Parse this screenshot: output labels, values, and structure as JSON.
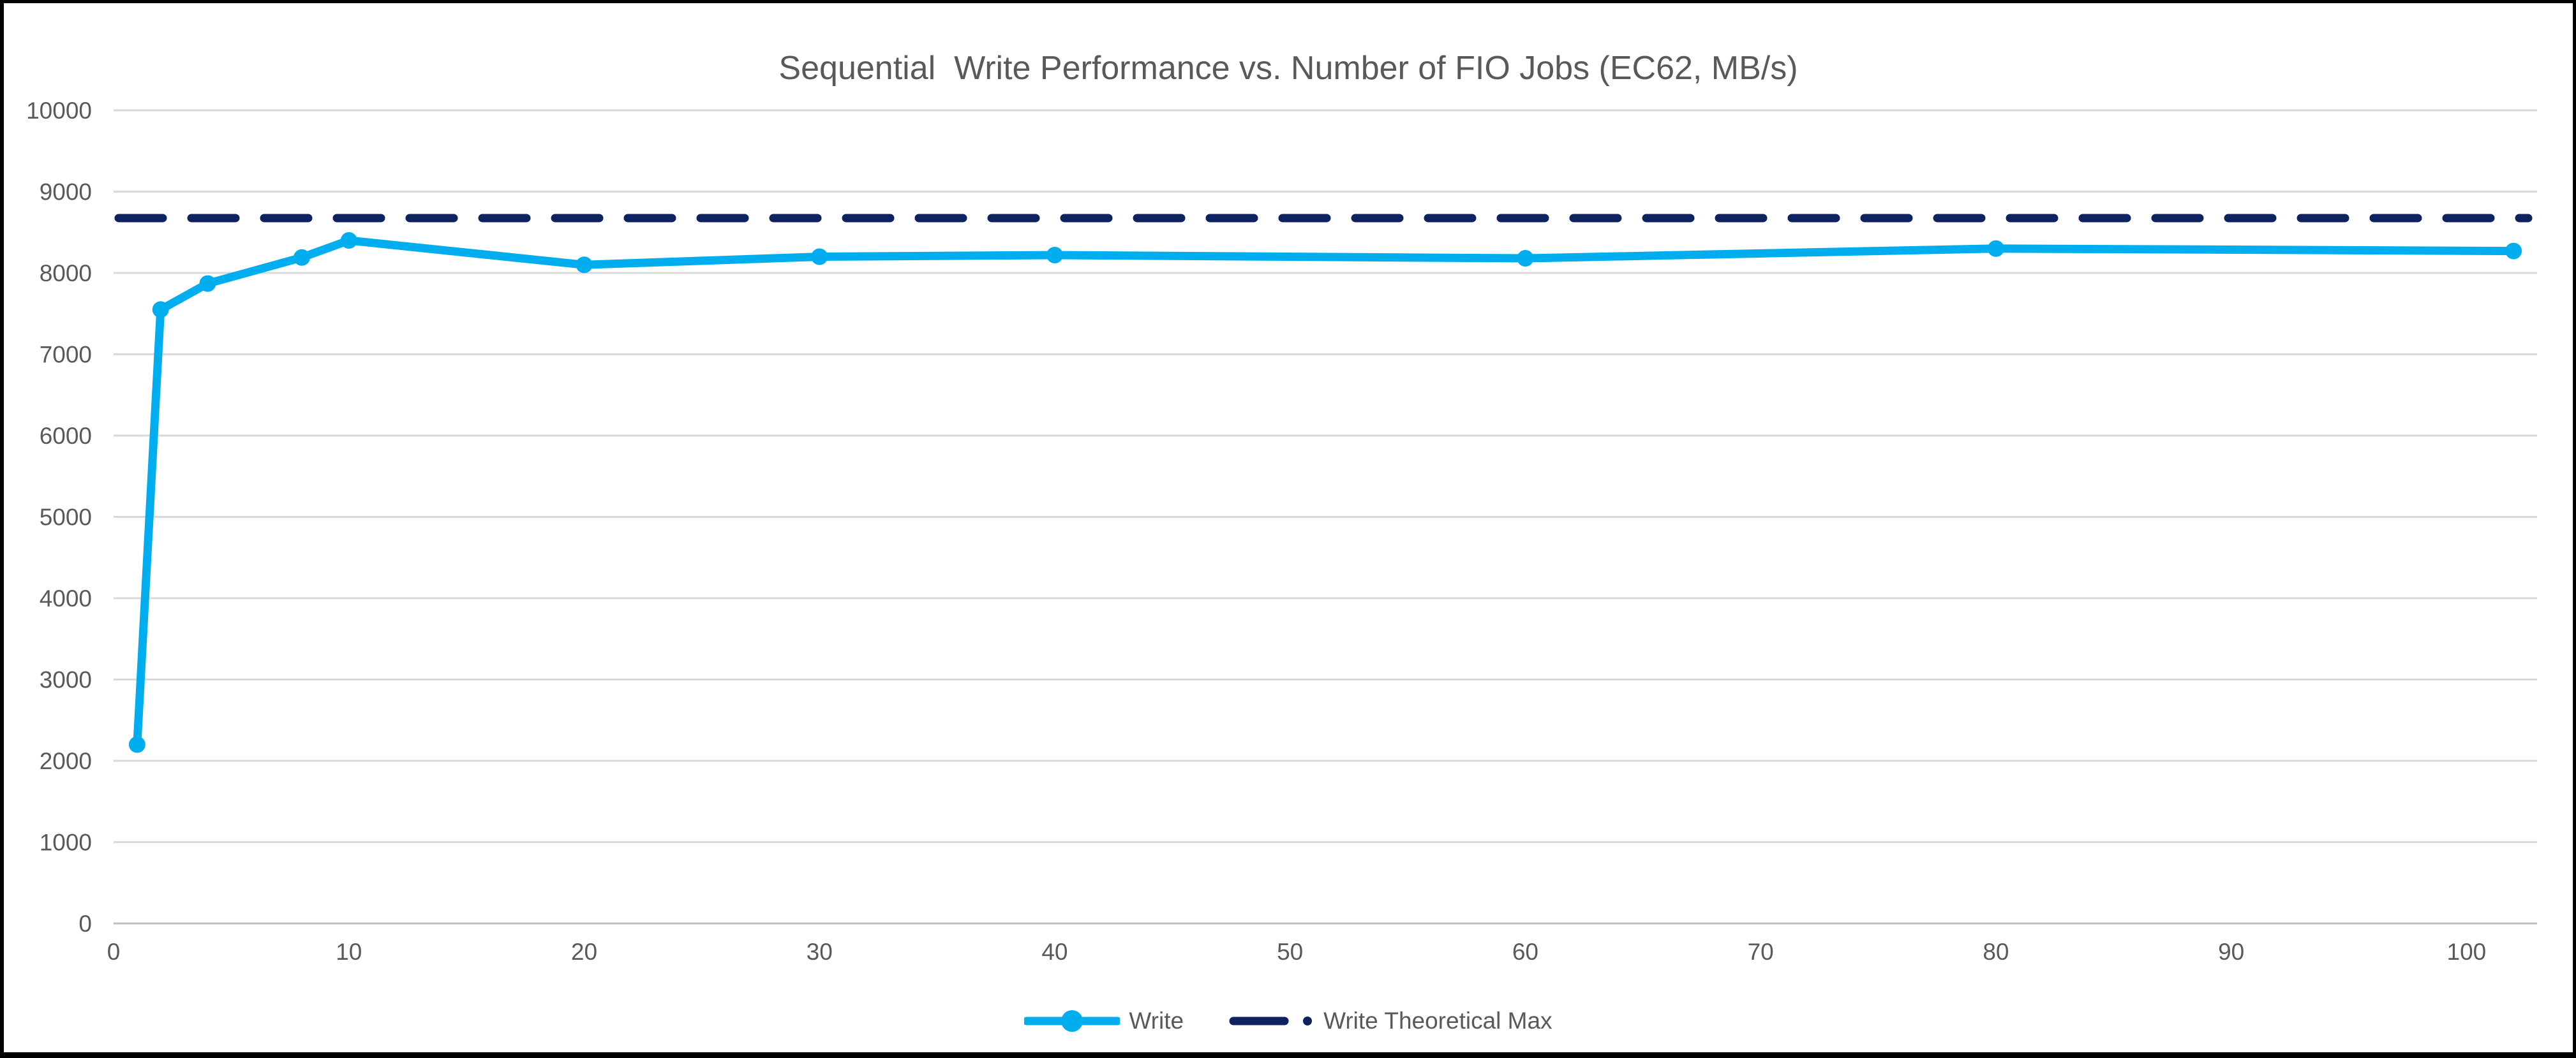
{
  "chart_data": {
    "type": "line",
    "title": "Sequential  Write Performance vs. Number of FIO Jobs (EC62, MB/s)",
    "xlabel": "",
    "ylabel": "",
    "x": [
      1,
      2,
      4,
      8,
      10,
      20,
      30,
      40,
      60,
      80,
      102
    ],
    "series": [
      {
        "name": "Write",
        "style": "solid-line-with-circle-markers",
        "color": "#00AEEF",
        "values": [
          2200,
          7550,
          7870,
          8190,
          8400,
          8100,
          8200,
          8220,
          8180,
          8300,
          8270
        ]
      },
      {
        "name": "Write Theoretical Max",
        "style": "dashed-horizontal-line",
        "color": "#0E2260",
        "constant_value": 8675
      }
    ],
    "xlim": [
      0,
      103
    ],
    "ylim": [
      0,
      10000
    ],
    "x_ticks": [
      0,
      10,
      20,
      30,
      40,
      50,
      60,
      70,
      80,
      90,
      100
    ],
    "y_ticks": [
      0,
      1000,
      2000,
      3000,
      4000,
      5000,
      6000,
      7000,
      8000,
      9000,
      10000
    ],
    "grid": "horizontal-on",
    "legend_position": "bottom-center",
    "colors": {
      "title_text": "#595959",
      "tick_text": "#595959",
      "gridline": "#D9D9D9",
      "axis_line": "#BFBFBF",
      "frame_border": "#000000",
      "background": "#FFFFFF"
    }
  },
  "legend": {
    "write_label": "Write",
    "theoretical_label": "Write Theoretical Max"
  }
}
